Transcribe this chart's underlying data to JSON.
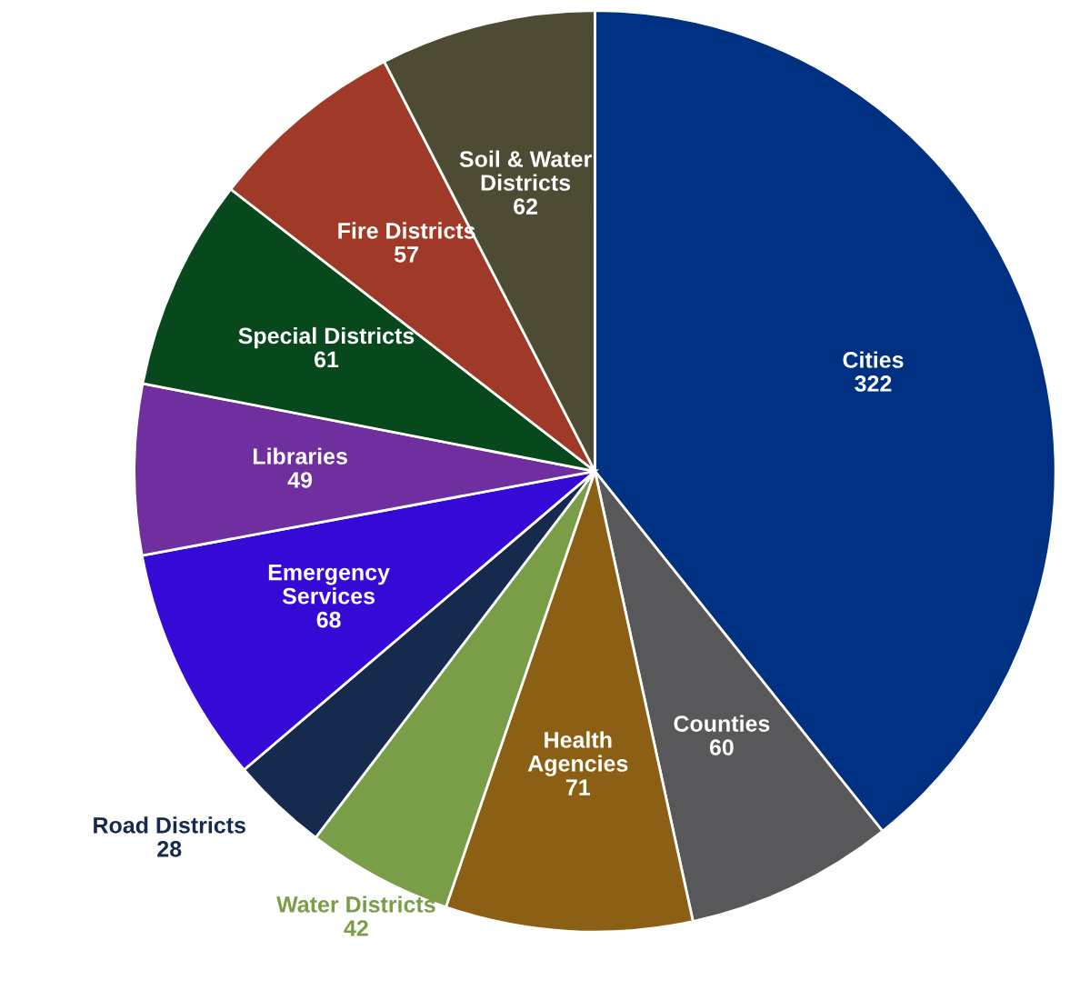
{
  "chart_data": {
    "type": "pie",
    "categories": [
      "Cities",
      "Counties",
      "Health\nAgencies",
      "Water Districts",
      "Road Districts",
      "Emergency\nServices",
      "Libraries",
      "Special Districts",
      "Fire Districts",
      "Soil & Water\nDistricts"
    ],
    "values": [
      322,
      60,
      71,
      42,
      28,
      68,
      49,
      61,
      57,
      62
    ],
    "colors": [
      "#003082",
      "#58585a",
      "#8b6014",
      "#7a9e48",
      "#152a4c",
      "#360ad6",
      "#6f2f9f",
      "#07491c",
      "#a03a28",
      "#4e4b35"
    ],
    "data_labels": true,
    "legend": false
  }
}
